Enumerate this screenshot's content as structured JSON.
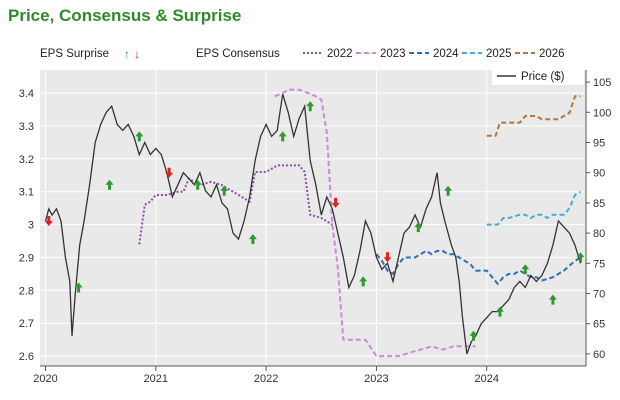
{
  "title": "Price, Consensus & Surprise",
  "colors": {
    "plot_bg": "#e9e9e9",
    "grid": "#ffffff",
    "price": "#333333",
    "up": "#2e9a2e",
    "down": "#e0211f",
    "s2022": "#8a4fa8",
    "s2023": "#c88ad8",
    "s2024": "#2f6fb5",
    "s2025": "#4ba9dc",
    "s2026": "#b0783a"
  },
  "legend": {
    "surprise_label": "EPS Surprise",
    "consensus_label": "EPS Consensus",
    "price_label": "Price ($)",
    "years": [
      "2022",
      "2023",
      "2024",
      "2025",
      "2026"
    ]
  },
  "chart_data": {
    "type": "line",
    "x_ticks": [
      "2020",
      "2021",
      "2022",
      "2023",
      "2024"
    ],
    "xlim": [
      2019.95,
      2024.9
    ],
    "left_axis": {
      "ticks": [
        "2.6",
        "2.7",
        "2.8",
        "2.9",
        "3",
        "3.1",
        "3.2",
        "3.3",
        "3.4"
      ],
      "range": [
        2.57,
        3.47
      ]
    },
    "right_axis": {
      "label": "Price ($)",
      "ticks": [
        "60",
        "65",
        "70",
        "75",
        "80",
        "85",
        "90",
        "95",
        "100",
        "105"
      ],
      "range": [
        58,
        107
      ]
    },
    "price": [
      [
        2020.0,
        82
      ],
      [
        2020.03,
        84
      ],
      [
        2020.06,
        83
      ],
      [
        2020.1,
        84
      ],
      [
        2020.14,
        82
      ],
      [
        2020.18,
        76
      ],
      [
        2020.22,
        72
      ],
      [
        2020.24,
        63
      ],
      [
        2020.27,
        70
      ],
      [
        2020.31,
        78
      ],
      [
        2020.35,
        82
      ],
      [
        2020.4,
        88
      ],
      [
        2020.45,
        95
      ],
      [
        2020.5,
        98
      ],
      [
        2020.55,
        100
      ],
      [
        2020.6,
        101
      ],
      [
        2020.65,
        98
      ],
      [
        2020.7,
        97
      ],
      [
        2020.75,
        98
      ],
      [
        2020.8,
        96
      ],
      [
        2020.85,
        93
      ],
      [
        2020.9,
        95
      ],
      [
        2020.95,
        93
      ],
      [
        2021.0,
        94
      ],
      [
        2021.05,
        93
      ],
      [
        2021.1,
        90
      ],
      [
        2021.15,
        86
      ],
      [
        2021.2,
        88
      ],
      [
        2021.25,
        90
      ],
      [
        2021.3,
        89
      ],
      [
        2021.35,
        88
      ],
      [
        2021.4,
        90
      ],
      [
        2021.45,
        87
      ],
      [
        2021.5,
        86
      ],
      [
        2021.55,
        88
      ],
      [
        2021.6,
        85
      ],
      [
        2021.65,
        84
      ],
      [
        2021.7,
        80
      ],
      [
        2021.75,
        79
      ],
      [
        2021.8,
        82
      ],
      [
        2021.85,
        86
      ],
      [
        2021.9,
        92
      ],
      [
        2021.95,
        96
      ],
      [
        2022.0,
        98
      ],
      [
        2022.05,
        96
      ],
      [
        2022.1,
        97
      ],
      [
        2022.15,
        103
      ],
      [
        2022.2,
        100
      ],
      [
        2022.25,
        96
      ],
      [
        2022.3,
        99
      ],
      [
        2022.35,
        101
      ],
      [
        2022.4,
        92
      ],
      [
        2022.45,
        88
      ],
      [
        2022.5,
        83
      ],
      [
        2022.55,
        86
      ],
      [
        2022.6,
        84
      ],
      [
        2022.65,
        80
      ],
      [
        2022.7,
        76
      ],
      [
        2022.75,
        71
      ],
      [
        2022.8,
        73
      ],
      [
        2022.85,
        77
      ],
      [
        2022.9,
        82
      ],
      [
        2022.95,
        80
      ],
      [
        2023.0,
        76
      ],
      [
        2023.05,
        74
      ],
      [
        2023.1,
        75
      ],
      [
        2023.15,
        72
      ],
      [
        2023.2,
        76
      ],
      [
        2023.25,
        80
      ],
      [
        2023.3,
        81
      ],
      [
        2023.35,
        83
      ],
      [
        2023.4,
        81
      ],
      [
        2023.45,
        84
      ],
      [
        2023.5,
        86
      ],
      [
        2023.55,
        90
      ],
      [
        2023.58,
        85
      ],
      [
        2023.62,
        82
      ],
      [
        2023.68,
        78
      ],
      [
        2023.72,
        76
      ],
      [
        2023.75,
        72
      ],
      [
        2023.78,
        66
      ],
      [
        2023.82,
        60
      ],
      [
        2023.86,
        62
      ],
      [
        2023.9,
        63
      ],
      [
        2023.95,
        65
      ],
      [
        2024.0,
        66
      ],
      [
        2024.05,
        67
      ],
      [
        2024.1,
        67
      ],
      [
        2024.15,
        68
      ],
      [
        2024.2,
        69
      ],
      [
        2024.25,
        71
      ],
      [
        2024.3,
        72
      ],
      [
        2024.35,
        71
      ],
      [
        2024.4,
        73
      ],
      [
        2024.45,
        72
      ],
      [
        2024.5,
        73
      ],
      [
        2024.55,
        75
      ],
      [
        2024.6,
        78
      ],
      [
        2024.65,
        82
      ],
      [
        2024.7,
        81
      ],
      [
        2024.75,
        80
      ],
      [
        2024.8,
        78
      ],
      [
        2024.85,
        75
      ]
    ],
    "consensus": [
      {
        "name": "2022",
        "dash": "dotted",
        "points": [
          [
            2020.85,
            2.94
          ],
          [
            2020.9,
            3.06
          ],
          [
            2020.95,
            3.07
          ],
          [
            2021.0,
            3.09
          ],
          [
            2021.1,
            3.09
          ],
          [
            2021.2,
            3.1
          ],
          [
            2021.25,
            3.1
          ],
          [
            2021.3,
            3.14
          ],
          [
            2021.4,
            3.12
          ],
          [
            2021.5,
            3.13
          ],
          [
            2021.6,
            3.12
          ],
          [
            2021.7,
            3.1
          ],
          [
            2021.8,
            3.08
          ],
          [
            2021.85,
            3.07
          ],
          [
            2021.9,
            3.16
          ],
          [
            2022.0,
            3.16
          ],
          [
            2022.1,
            3.18
          ],
          [
            2022.2,
            3.18
          ],
          [
            2022.3,
            3.18
          ],
          [
            2022.35,
            3.16
          ],
          [
            2022.4,
            3.03
          ],
          [
            2022.5,
            3.02
          ],
          [
            2022.6,
            3.0
          ]
        ]
      },
      {
        "name": "2023",
        "dash": "dashed",
        "points": [
          [
            2022.08,
            3.39
          ],
          [
            2022.15,
            3.4
          ],
          [
            2022.2,
            3.41
          ],
          [
            2022.3,
            3.41
          ],
          [
            2022.38,
            3.4
          ],
          [
            2022.45,
            3.39
          ],
          [
            2022.5,
            3.38
          ],
          [
            2022.55,
            3.28
          ],
          [
            2022.6,
            3.0
          ],
          [
            2022.65,
            2.87
          ],
          [
            2022.7,
            2.65
          ],
          [
            2022.8,
            2.65
          ],
          [
            2022.9,
            2.65
          ],
          [
            2023.0,
            2.6
          ],
          [
            2023.1,
            2.6
          ],
          [
            2023.2,
            2.6
          ],
          [
            2023.3,
            2.61
          ],
          [
            2023.4,
            2.62
          ],
          [
            2023.5,
            2.63
          ],
          [
            2023.6,
            2.62
          ],
          [
            2023.7,
            2.63
          ],
          [
            2023.8,
            2.63
          ],
          [
            2023.9,
            2.63
          ]
        ]
      },
      {
        "name": "2024",
        "dash": "dashed",
        "points": [
          [
            2023.0,
            2.91
          ],
          [
            2023.05,
            2.89
          ],
          [
            2023.1,
            2.86
          ],
          [
            2023.15,
            2.85
          ],
          [
            2023.2,
            2.88
          ],
          [
            2023.25,
            2.9
          ],
          [
            2023.3,
            2.9
          ],
          [
            2023.35,
            2.9
          ],
          [
            2023.4,
            2.91
          ],
          [
            2023.45,
            2.92
          ],
          [
            2023.5,
            2.91
          ],
          [
            2023.55,
            2.92
          ],
          [
            2023.6,
            2.92
          ],
          [
            2023.65,
            2.91
          ],
          [
            2023.7,
            2.91
          ],
          [
            2023.75,
            2.9
          ],
          [
            2023.8,
            2.89
          ],
          [
            2023.85,
            2.88
          ],
          [
            2023.9,
            2.86
          ],
          [
            2023.95,
            2.86
          ],
          [
            2024.0,
            2.86
          ],
          [
            2024.05,
            2.84
          ],
          [
            2024.1,
            2.82
          ],
          [
            2024.15,
            2.84
          ],
          [
            2024.2,
            2.85
          ],
          [
            2024.25,
            2.85
          ],
          [
            2024.3,
            2.86
          ],
          [
            2024.35,
            2.85
          ],
          [
            2024.4,
            2.84
          ],
          [
            2024.45,
            2.84
          ],
          [
            2024.5,
            2.83
          ],
          [
            2024.6,
            2.84
          ],
          [
            2024.7,
            2.86
          ],
          [
            2024.8,
            2.89
          ],
          [
            2024.85,
            2.9
          ]
        ]
      },
      {
        "name": "2025",
        "dash": "dashed",
        "points": [
          [
            2024.0,
            3.0
          ],
          [
            2024.1,
            3.0
          ],
          [
            2024.15,
            3.02
          ],
          [
            2024.2,
            3.02
          ],
          [
            2024.3,
            3.03
          ],
          [
            2024.35,
            3.03
          ],
          [
            2024.4,
            3.02
          ],
          [
            2024.45,
            3.03
          ],
          [
            2024.5,
            3.03
          ],
          [
            2024.55,
            3.02
          ],
          [
            2024.6,
            3.03
          ],
          [
            2024.65,
            3.03
          ],
          [
            2024.7,
            3.03
          ],
          [
            2024.75,
            3.05
          ],
          [
            2024.8,
            3.09
          ],
          [
            2024.85,
            3.1
          ]
        ]
      },
      {
        "name": "2026",
        "dash": "dashed",
        "points": [
          [
            2024.0,
            3.27
          ],
          [
            2024.08,
            3.27
          ],
          [
            2024.12,
            3.31
          ],
          [
            2024.2,
            3.31
          ],
          [
            2024.3,
            3.31
          ],
          [
            2024.35,
            3.33
          ],
          [
            2024.45,
            3.33
          ],
          [
            2024.5,
            3.32
          ],
          [
            2024.55,
            3.32
          ],
          [
            2024.6,
            3.32
          ],
          [
            2024.65,
            3.32
          ],
          [
            2024.7,
            3.33
          ],
          [
            2024.75,
            3.34
          ],
          [
            2024.8,
            3.39
          ],
          [
            2024.85,
            3.39
          ]
        ]
      }
    ],
    "surprises": [
      {
        "x": 2020.03,
        "price": 82,
        "dir": "down"
      },
      {
        "x": 2020.3,
        "price": 71,
        "dir": "up"
      },
      {
        "x": 2020.58,
        "price": 88,
        "dir": "up"
      },
      {
        "x": 2020.85,
        "price": 96,
        "dir": "up"
      },
      {
        "x": 2021.12,
        "price": 90,
        "dir": "down"
      },
      {
        "x": 2021.38,
        "price": 88,
        "dir": "up"
      },
      {
        "x": 2021.62,
        "price": 87,
        "dir": "up"
      },
      {
        "x": 2021.88,
        "price": 79,
        "dir": "up"
      },
      {
        "x": 2022.15,
        "price": 96,
        "dir": "up"
      },
      {
        "x": 2022.4,
        "price": 101,
        "dir": "up"
      },
      {
        "x": 2022.63,
        "price": 85,
        "dir": "down"
      },
      {
        "x": 2022.88,
        "price": 72,
        "dir": "up"
      },
      {
        "x": 2023.1,
        "price": 76,
        "dir": "down"
      },
      {
        "x": 2023.38,
        "price": 81,
        "dir": "up"
      },
      {
        "x": 2023.65,
        "price": 87,
        "dir": "up"
      },
      {
        "x": 2023.88,
        "price": 63,
        "dir": "up"
      },
      {
        "x": 2024.12,
        "price": 67,
        "dir": "up"
      },
      {
        "x": 2024.35,
        "price": 74,
        "dir": "up"
      },
      {
        "x": 2024.6,
        "price": 69,
        "dir": "up"
      },
      {
        "x": 2024.85,
        "price": 76,
        "dir": "up"
      }
    ]
  }
}
